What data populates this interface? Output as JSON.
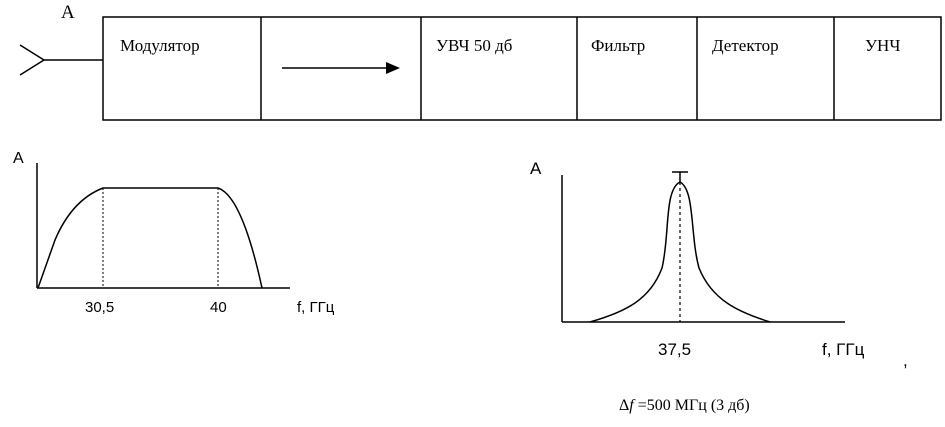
{
  "block_diagram": {
    "antenna_label": "A",
    "blocks": [
      {
        "id": "modulator",
        "label": "Модулятор"
      },
      {
        "id": "arrow",
        "label": ""
      },
      {
        "id": "rf_amp",
        "label": "УВЧ 50 дб"
      },
      {
        "id": "filter",
        "label": "Фильтр"
      },
      {
        "id": "detector",
        "label": "Детектор"
      },
      {
        "id": "af_amp",
        "label": "УНЧ"
      }
    ]
  },
  "chart_data": [
    {
      "type": "line",
      "description": "band-pass amplitude response (modulator input spectrum)",
      "ylabel": "A",
      "xlabel": "f, ГГц",
      "tick_labels": [
        "30,5",
        "40"
      ],
      "tick_values": [
        30.5,
        40
      ],
      "points": [
        [
          28.5,
          0
        ],
        [
          30.5,
          0.85
        ],
        [
          40,
          0.85
        ],
        [
          42,
          0
        ]
      ],
      "markers": [
        30.5,
        40
      ],
      "xlim": [
        28.5,
        47
      ],
      "ylim": [
        0,
        1
      ]
    },
    {
      "type": "line",
      "description": "narrow resonance response",
      "ylabel": "A",
      "xlabel": "f, ГГц",
      "trailing_mark": ",",
      "tick_labels": [
        "37,5"
      ],
      "tick_values": [
        37.5
      ],
      "center": 37.5,
      "peak": 1,
      "markers": [
        37.5
      ],
      "xlim": [
        30,
        47
      ],
      "ylim": [
        0,
        1
      ]
    }
  ],
  "bandwidth_note": {
    "prefix": "Δ",
    "symbol": "f",
    "text": " =500 МГц (3 дб)"
  }
}
